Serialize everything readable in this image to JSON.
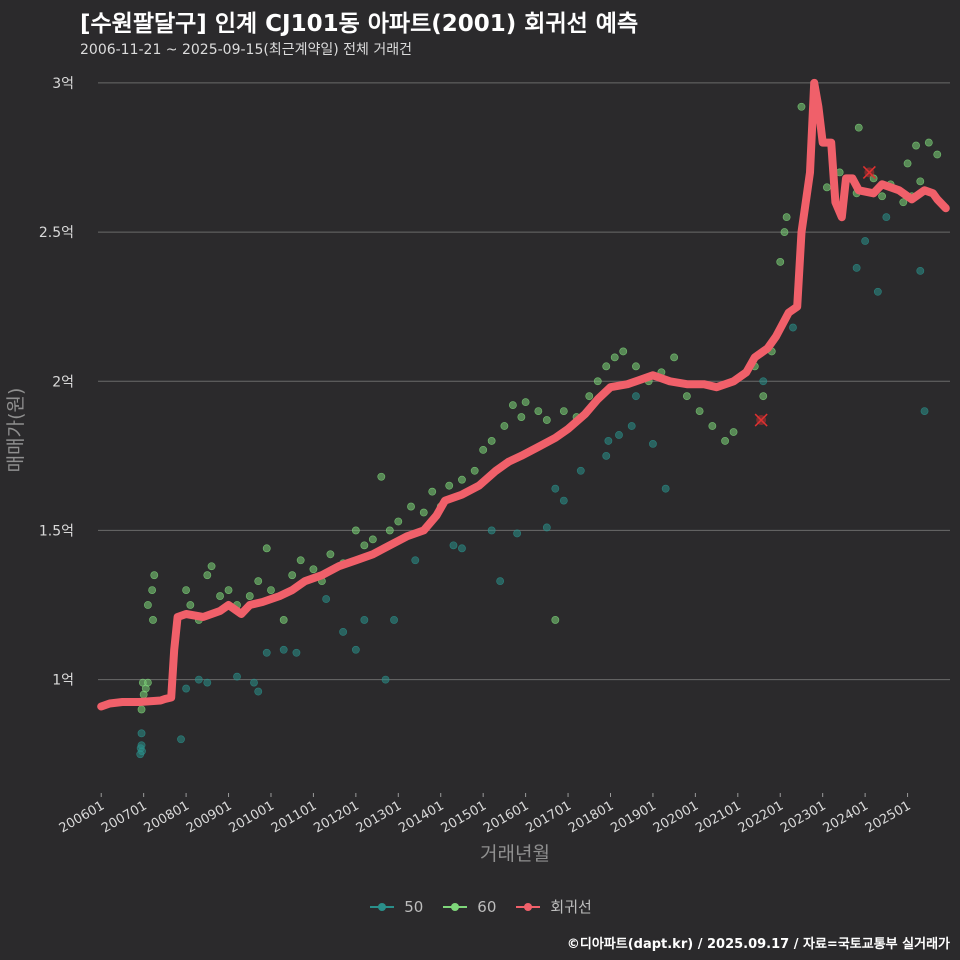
{
  "title": "[수원팔달구] 인계 CJ101동 아파트(2001) 회귀선 예측",
  "subtitle": "2006-11-21 ~ 2025-09-15(최근계약일) 전체 거래건",
  "caption": "©디아파트(dapt.kr) / 2025.09.17 / 자료=국토교통부 실거래가",
  "colors": {
    "s50": "#2a8f8a",
    "s60": "#7ed67a",
    "reg": "#f0606a",
    "cancel": "#e03030",
    "background": "#2b2a2c"
  },
  "chart_data": {
    "type": "scatter",
    "xlabel": "거래년월",
    "ylabel": "매매가(원)",
    "x_ticks": [
      "200601",
      "200701",
      "200801",
      "200901",
      "201001",
      "201101",
      "201201",
      "201301",
      "201401",
      "201501",
      "201601",
      "201701",
      "201801",
      "201901",
      "202001",
      "202101",
      "202201",
      "202301",
      "202401",
      "202501"
    ],
    "y_ticks": [
      {
        "value": 1.0,
        "label": "1억"
      },
      {
        "value": 1.5,
        "label": "1.5억"
      },
      {
        "value": 2.0,
        "label": "2억"
      },
      {
        "value": 2.5,
        "label": "2.5억"
      },
      {
        "value": 3.0,
        "label": "3억"
      }
    ],
    "xlim": [
      2005.5,
      2026.0
    ],
    "ylim": [
      0.63,
      3.06
    ],
    "y_unit": "억원",
    "grid": "horizontal",
    "legend_position": "bottom",
    "legend": [
      "50",
      "60",
      "회귀선"
    ],
    "series": [
      {
        "name": "50",
        "points": [
          [
            2006.92,
            0.75
          ],
          [
            2006.93,
            0.77
          ],
          [
            2006.95,
            0.78
          ],
          [
            2006.96,
            0.76
          ],
          [
            2006.95,
            0.82
          ],
          [
            2007.88,
            0.8
          ],
          [
            2008.0,
            0.97
          ],
          [
            2008.3,
            1.0
          ],
          [
            2008.5,
            0.99
          ],
          [
            2009.2,
            1.01
          ],
          [
            2009.6,
            0.99
          ],
          [
            2009.7,
            0.96
          ],
          [
            2009.9,
            1.09
          ],
          [
            2010.3,
            1.1
          ],
          [
            2010.6,
            1.09
          ],
          [
            2011.3,
            1.27
          ],
          [
            2011.7,
            1.16
          ],
          [
            2012.0,
            1.1
          ],
          [
            2012.2,
            1.2
          ],
          [
            2012.7,
            1.0
          ],
          [
            2012.9,
            1.2
          ],
          [
            2013.4,
            1.4
          ],
          [
            2014.3,
            1.45
          ],
          [
            2014.5,
            1.44
          ],
          [
            2015.2,
            1.5
          ],
          [
            2015.4,
            1.33
          ],
          [
            2015.8,
            1.49
          ],
          [
            2016.5,
            1.51
          ],
          [
            2016.7,
            1.64
          ],
          [
            2016.9,
            1.6
          ],
          [
            2017.3,
            1.7
          ],
          [
            2017.9,
            1.75
          ],
          [
            2017.95,
            1.8
          ],
          [
            2018.2,
            1.82
          ],
          [
            2018.5,
            1.85
          ],
          [
            2018.6,
            1.95
          ],
          [
            2019.0,
            1.79
          ],
          [
            2019.3,
            1.64
          ],
          [
            2021.6,
            2.0
          ],
          [
            2022.3,
            2.18
          ],
          [
            2023.8,
            2.38
          ],
          [
            2024.0,
            2.47
          ],
          [
            2024.3,
            2.3
          ],
          [
            2024.5,
            2.55
          ],
          [
            2025.3,
            2.37
          ],
          [
            2025.4,
            1.9
          ]
        ]
      },
      {
        "name": "60",
        "points": [
          [
            2006.95,
            0.9
          ],
          [
            2007.0,
            0.95
          ],
          [
            2007.05,
            0.97
          ],
          [
            2007.1,
            0.99
          ],
          [
            2006.98,
            0.99
          ],
          [
            2007.1,
            1.25
          ],
          [
            2007.2,
            1.3
          ],
          [
            2007.25,
            1.35
          ],
          [
            2007.22,
            1.2
          ],
          [
            2008.0,
            1.3
          ],
          [
            2008.1,
            1.25
          ],
          [
            2008.3,
            1.2
          ],
          [
            2008.5,
            1.35
          ],
          [
            2008.6,
            1.38
          ],
          [
            2008.8,
            1.28
          ],
          [
            2009.0,
            1.3
          ],
          [
            2009.2,
            1.25
          ],
          [
            2009.5,
            1.28
          ],
          [
            2009.7,
            1.33
          ],
          [
            2009.9,
            1.44
          ],
          [
            2010.0,
            1.3
          ],
          [
            2010.3,
            1.2
          ],
          [
            2010.5,
            1.35
          ],
          [
            2010.7,
            1.4
          ],
          [
            2011.0,
            1.37
          ],
          [
            2011.2,
            1.33
          ],
          [
            2011.4,
            1.42
          ],
          [
            2011.7,
            1.39
          ],
          [
            2012.0,
            1.5
          ],
          [
            2012.2,
            1.45
          ],
          [
            2012.4,
            1.47
          ],
          [
            2012.6,
            1.68
          ],
          [
            2012.8,
            1.5
          ],
          [
            2013.0,
            1.53
          ],
          [
            2013.3,
            1.58
          ],
          [
            2013.6,
            1.56
          ],
          [
            2013.8,
            1.63
          ],
          [
            2014.0,
            1.58
          ],
          [
            2014.2,
            1.65
          ],
          [
            2014.5,
            1.67
          ],
          [
            2014.8,
            1.7
          ],
          [
            2015.0,
            1.77
          ],
          [
            2015.2,
            1.8
          ],
          [
            2015.5,
            1.85
          ],
          [
            2015.7,
            1.92
          ],
          [
            2015.9,
            1.88
          ],
          [
            2016.0,
            1.93
          ],
          [
            2016.3,
            1.9
          ],
          [
            2016.5,
            1.87
          ],
          [
            2016.7,
            1.2
          ],
          [
            2016.9,
            1.9
          ],
          [
            2017.2,
            1.88
          ],
          [
            2017.5,
            1.95
          ],
          [
            2017.7,
            2.0
          ],
          [
            2017.9,
            2.05
          ],
          [
            2018.1,
            2.08
          ],
          [
            2018.3,
            2.1
          ],
          [
            2018.6,
            2.05
          ],
          [
            2018.9,
            2.0
          ],
          [
            2019.2,
            2.03
          ],
          [
            2019.5,
            2.08
          ],
          [
            2019.8,
            1.95
          ],
          [
            2020.1,
            1.9
          ],
          [
            2020.4,
            1.85
          ],
          [
            2020.7,
            1.8
          ],
          [
            2020.9,
            1.83
          ],
          [
            2021.1,
            2.02
          ],
          [
            2021.4,
            2.05
          ],
          [
            2021.6,
            1.95
          ],
          [
            2021.8,
            2.1
          ],
          [
            2022.0,
            2.4
          ],
          [
            2022.1,
            2.5
          ],
          [
            2022.15,
            2.55
          ],
          [
            2022.5,
            2.92
          ],
          [
            2023.1,
            2.65
          ],
          [
            2023.4,
            2.7
          ],
          [
            2023.8,
            2.63
          ],
          [
            2023.85,
            2.85
          ],
          [
            2024.2,
            2.68
          ],
          [
            2024.4,
            2.62
          ],
          [
            2024.6,
            2.66
          ],
          [
            2024.9,
            2.6
          ],
          [
            2025.0,
            2.73
          ],
          [
            2025.2,
            2.79
          ],
          [
            2025.3,
            2.67
          ],
          [
            2025.5,
            2.8
          ],
          [
            2025.7,
            2.76
          ],
          [
            2025.1,
            2.62
          ]
        ]
      },
      {
        "name": "회귀선",
        "points": [
          [
            2006.0,
            0.91
          ],
          [
            2006.2,
            0.92
          ],
          [
            2006.5,
            0.925
          ],
          [
            2006.9,
            0.925
          ],
          [
            2007.4,
            0.93
          ],
          [
            2007.5,
            0.935
          ],
          [
            2007.65,
            0.94
          ],
          [
            2007.72,
            1.1
          ],
          [
            2007.8,
            1.21
          ],
          [
            2008.0,
            1.22
          ],
          [
            2008.4,
            1.21
          ],
          [
            2008.8,
            1.23
          ],
          [
            2009.0,
            1.25
          ],
          [
            2009.3,
            1.22
          ],
          [
            2009.5,
            1.25
          ],
          [
            2009.8,
            1.26
          ],
          [
            2010.2,
            1.28
          ],
          [
            2010.5,
            1.3
          ],
          [
            2010.8,
            1.33
          ],
          [
            2011.2,
            1.35
          ],
          [
            2011.6,
            1.38
          ],
          [
            2012.0,
            1.4
          ],
          [
            2012.4,
            1.42
          ],
          [
            2012.8,
            1.45
          ],
          [
            2013.2,
            1.48
          ],
          [
            2013.6,
            1.5
          ],
          [
            2013.9,
            1.55
          ],
          [
            2014.1,
            1.6
          ],
          [
            2014.5,
            1.62
          ],
          [
            2014.9,
            1.65
          ],
          [
            2015.3,
            1.7
          ],
          [
            2015.6,
            1.73
          ],
          [
            2015.9,
            1.75
          ],
          [
            2016.3,
            1.78
          ],
          [
            2016.7,
            1.81
          ],
          [
            2017.0,
            1.84
          ],
          [
            2017.4,
            1.89
          ],
          [
            2017.7,
            1.94
          ],
          [
            2018.0,
            1.98
          ],
          [
            2018.4,
            1.99
          ],
          [
            2018.8,
            2.01
          ],
          [
            2019.0,
            2.02
          ],
          [
            2019.4,
            2.0
          ],
          [
            2019.8,
            1.99
          ],
          [
            2020.2,
            1.99
          ],
          [
            2020.5,
            1.98
          ],
          [
            2020.9,
            2.0
          ],
          [
            2021.2,
            2.03
          ],
          [
            2021.4,
            2.08
          ],
          [
            2021.7,
            2.11
          ],
          [
            2021.9,
            2.15
          ],
          [
            2022.2,
            2.23
          ],
          [
            2022.4,
            2.25
          ],
          [
            2022.5,
            2.5
          ],
          [
            2022.7,
            2.7
          ],
          [
            2022.8,
            3.0
          ],
          [
            2022.9,
            2.92
          ],
          [
            2023.0,
            2.8
          ],
          [
            2023.2,
            2.8
          ],
          [
            2023.3,
            2.6
          ],
          [
            2023.45,
            2.55
          ],
          [
            2023.55,
            2.68
          ],
          [
            2023.7,
            2.68
          ],
          [
            2023.85,
            2.64
          ],
          [
            2024.2,
            2.63
          ],
          [
            2024.4,
            2.66
          ],
          [
            2024.8,
            2.64
          ],
          [
            2025.1,
            2.61
          ],
          [
            2025.4,
            2.64
          ],
          [
            2025.6,
            2.63
          ],
          [
            2025.7,
            2.61
          ],
          [
            2025.9,
            2.58
          ]
        ]
      }
    ],
    "cancelled_points": [
      [
        2021.55,
        1.87
      ],
      [
        2024.1,
        2.7
      ]
    ]
  }
}
